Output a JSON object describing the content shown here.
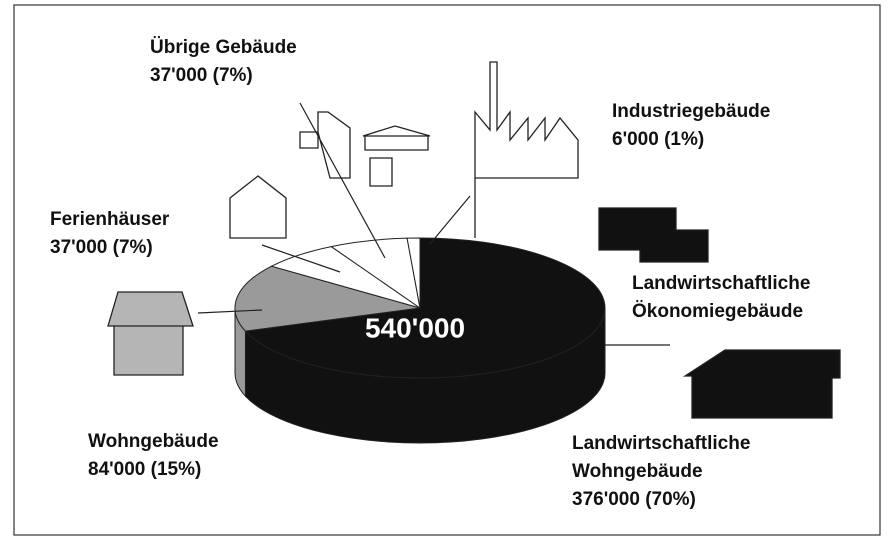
{
  "chart_data": {
    "type": "pie",
    "categories": [
      "Landwirtschaftliche Wohngebäude",
      "Wohngebäude",
      "Ferienhäuser",
      "Übrige Gebäude",
      "Industriegebäude"
    ],
    "values": [
      376000,
      84000,
      37000,
      37000,
      6000
    ],
    "value_labels": [
      "376'000 (70%)",
      "84'000 (15%)",
      "37'000 (7%)",
      "37'000 (7%)",
      "6'000 (1%)"
    ],
    "colors": [
      "#111111",
      "#9a9a9a",
      "#ffffff",
      "#ffffff",
      "#ffffff"
    ],
    "center_label": "540'000",
    "annotations": [
      "Landwirtschaftliche Ökonomiegebäude"
    ]
  }
}
